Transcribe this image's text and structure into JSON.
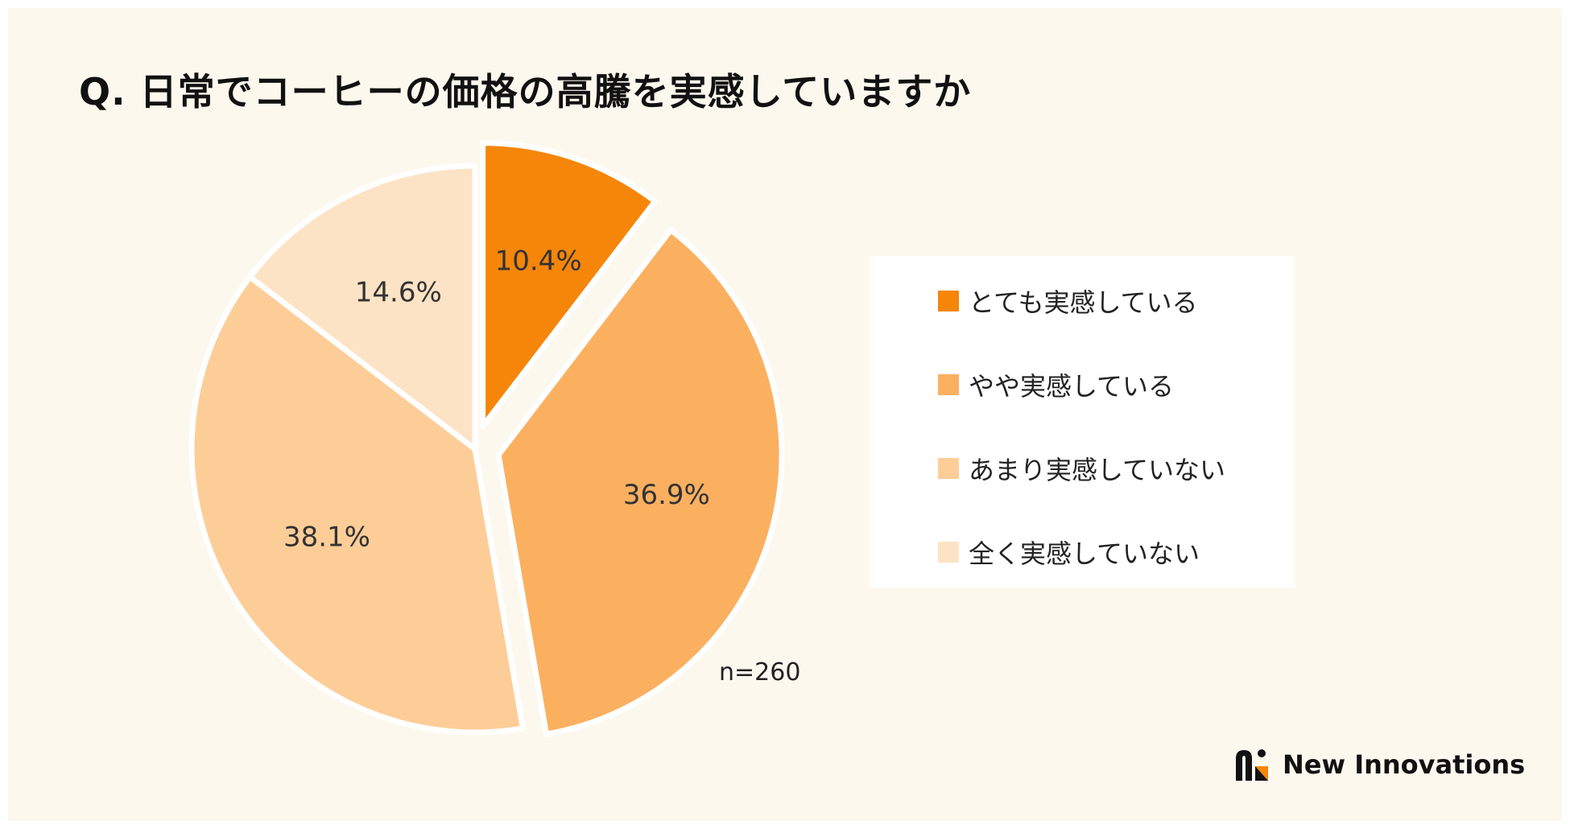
{
  "title": "Q. 日常でコーヒーの価格の高騰を実感していますか",
  "n_label": "n=260",
  "brand": "New Innovations",
  "chart_data": {
    "type": "pie",
    "title": "Q. 日常でコーヒーの価格の高騰を実感していますか",
    "categories": [
      "とても実感している",
      "やや実感している",
      "あまり実感していない",
      "全く実感していない"
    ],
    "values": [
      10.4,
      36.9,
      38.1,
      14.6
    ],
    "value_labels": [
      "10.4%",
      "36.9%",
      "38.1%",
      "14.6%"
    ],
    "colors": [
      "#f5860a",
      "#fbb060",
      "#fdcd98",
      "#fde3c5"
    ],
    "exploded": [
      true,
      true,
      false,
      false
    ],
    "legend_position": "right",
    "sample_size": "n=260"
  }
}
